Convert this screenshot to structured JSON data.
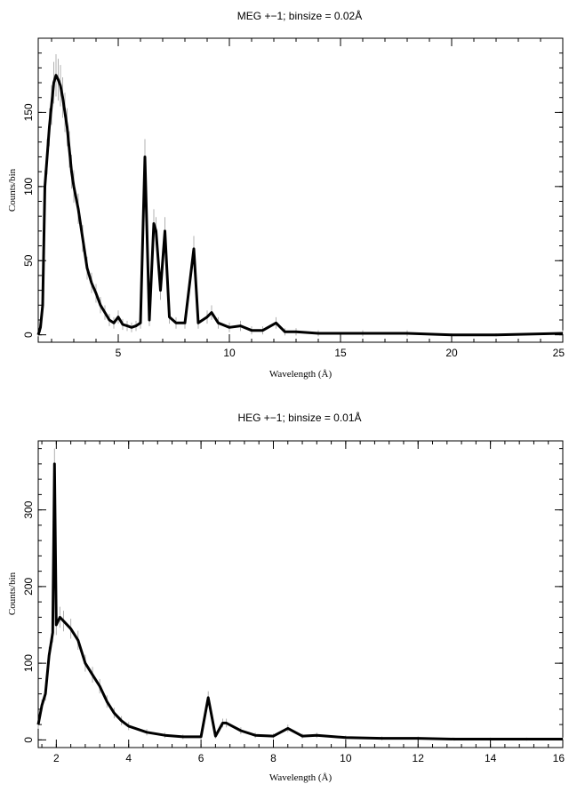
{
  "chart_data": [
    {
      "type": "line",
      "title": "MEG +−1; binsize = 0.02Å",
      "xlabel": "Wavelength (Å)",
      "ylabel": "Counts/bin",
      "xlim": [
        1.4,
        25
      ],
      "ylim": [
        -5,
        200
      ],
      "xticks": [
        5,
        10,
        15,
        20,
        25
      ],
      "yticks": [
        0,
        50,
        100,
        150
      ],
      "grid": false,
      "colors": {
        "line": "#000000",
        "error": "#b0b0b0"
      },
      "x": [
        1.4,
        1.5,
        1.6,
        1.7,
        1.8,
        1.9,
        2.0,
        2.1,
        2.2,
        2.3,
        2.4,
        2.5,
        2.6,
        2.7,
        2.8,
        2.9,
        3.0,
        3.2,
        3.4,
        3.6,
        3.8,
        4.0,
        4.2,
        4.4,
        4.6,
        4.8,
        5.0,
        5.2,
        5.4,
        5.6,
        5.8,
        6.0,
        6.2,
        6.4,
        6.6,
        6.7,
        6.9,
        7.1,
        7.3,
        7.6,
        8.0,
        8.4,
        8.6,
        9.0,
        9.2,
        9.5,
        10.0,
        10.5,
        11.0,
        11.5,
        12.1,
        12.5,
        13.0,
        14.0,
        16.0,
        18.0,
        20.0,
        22.0,
        25.0
      ],
      "y": [
        0,
        5,
        20,
        100,
        120,
        140,
        155,
        170,
        175,
        172,
        168,
        160,
        150,
        140,
        125,
        110,
        100,
        85,
        65,
        45,
        35,
        28,
        20,
        15,
        10,
        8,
        12,
        7,
        6,
        5,
        6,
        8,
        120,
        10,
        75,
        70,
        30,
        70,
        12,
        8,
        8,
        58,
        8,
        12,
        15,
        8,
        5,
        6,
        3,
        3,
        8,
        2,
        2,
        1,
        1,
        1,
        0,
        0,
        1
      ]
    },
    {
      "type": "line",
      "title": "HEG +−1; binsize = 0.01Å",
      "xlabel": "Wavelength (Å)",
      "ylabel": "Counts/bin",
      "xlim": [
        1.5,
        16
      ],
      "ylim": [
        -10,
        390
      ],
      "xticks": [
        2,
        4,
        6,
        8,
        10,
        12,
        14,
        16
      ],
      "yticks": [
        0,
        100,
        200,
        300
      ],
      "grid": false,
      "colors": {
        "line": "#000000",
        "error": "#b0b0b0"
      },
      "x": [
        1.5,
        1.6,
        1.7,
        1.8,
        1.9,
        1.95,
        2.0,
        2.1,
        2.2,
        2.4,
        2.6,
        2.8,
        3.0,
        3.2,
        3.4,
        3.6,
        3.8,
        4.0,
        4.5,
        5.0,
        5.5,
        6.0,
        6.2,
        6.4,
        6.6,
        6.7,
        7.1,
        7.5,
        8.0,
        8.4,
        8.8,
        9.2,
        10.0,
        11.0,
        12.0,
        13.0,
        14.0,
        15.0,
        16.0
      ],
      "y": [
        20,
        45,
        60,
        110,
        140,
        360,
        150,
        160,
        155,
        145,
        130,
        100,
        85,
        70,
        50,
        35,
        25,
        18,
        10,
        6,
        4,
        4,
        55,
        5,
        22,
        22,
        12,
        6,
        5,
        15,
        5,
        6,
        3,
        2,
        2,
        1,
        1,
        1,
        1
      ]
    }
  ]
}
